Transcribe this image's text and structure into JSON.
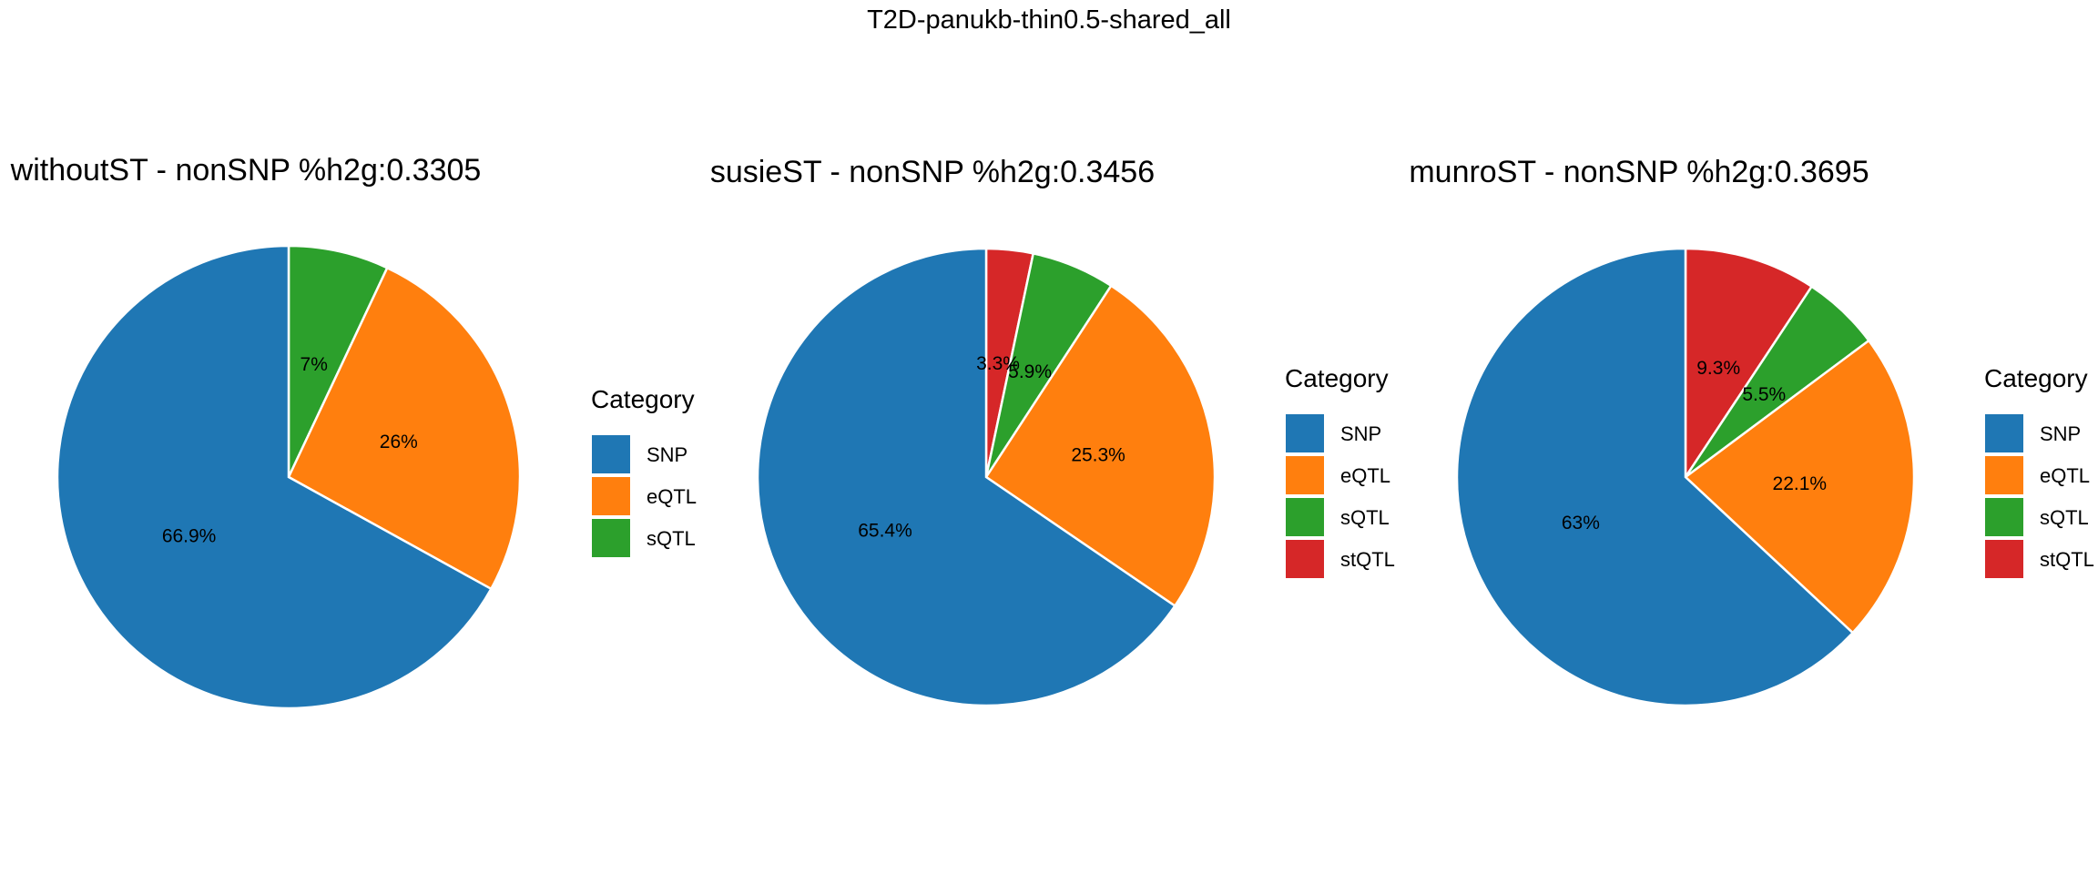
{
  "title": "T2D-panukb-thin0.5-shared_all",
  "chart_data": [
    {
      "type": "pie",
      "title": "withoutST - nonSNP %h2g:0.3305",
      "categories": [
        "SNP",
        "eQTL",
        "sQTL"
      ],
      "values": [
        66.9,
        26,
        7
      ],
      "labels": [
        "66.9%",
        "26%",
        "7%"
      ],
      "legend_title": "Category",
      "legend_placement": "right"
    },
    {
      "type": "pie",
      "title": "susieST - nonSNP %h2g:0.3456",
      "categories": [
        "SNP",
        "eQTL",
        "sQTL",
        "stQTL"
      ],
      "values": [
        65.4,
        25.3,
        5.9,
        3.3
      ],
      "labels": [
        "65.4%",
        "25.3%",
        "5.9%",
        "3.3%"
      ],
      "legend_title": "Category",
      "legend_placement": "right"
    },
    {
      "type": "pie",
      "title": "munroST - nonSNP %h2g:0.3695",
      "categories": [
        "SNP",
        "eQTL",
        "sQTL",
        "stQTL"
      ],
      "values": [
        63,
        22.1,
        5.5,
        9.3
      ],
      "labels": [
        "63%",
        "22.1%",
        "5.5%",
        "9.3%"
      ],
      "legend_title": "Category",
      "legend_placement": "right"
    }
  ],
  "colors": {
    "SNP": "#1f77b4",
    "eQTL": "#ff7f0e",
    "sQTL": "#2ca02c",
    "stQTL": "#d62728"
  }
}
